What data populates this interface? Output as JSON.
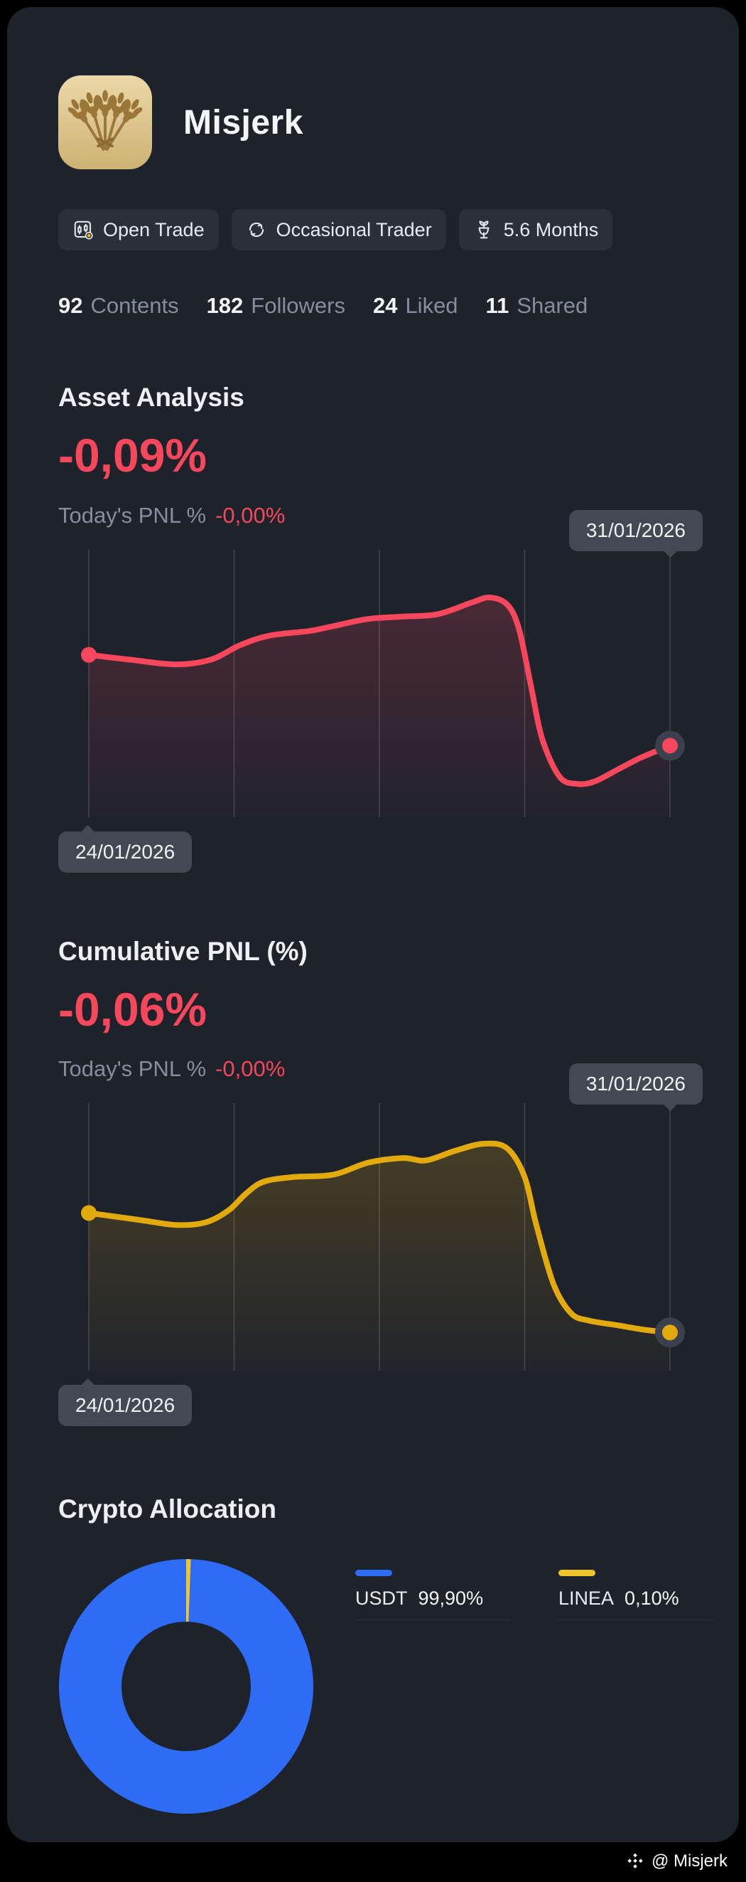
{
  "profile": {
    "name": "Misjerk",
    "avatar_icon": "wheat-sheaf",
    "badges": [
      {
        "label": "Open Trade",
        "icon": "candlestick-chart-icon"
      },
      {
        "label": "Occasional Trader",
        "icon": "trade-cycle-icon"
      },
      {
        "label": "5.6 Months",
        "icon": "seedling-cup-icon"
      }
    ],
    "stats": [
      {
        "value": "92",
        "label": "Contents"
      },
      {
        "value": "182",
        "label": "Followers"
      },
      {
        "value": "24",
        "label": "Liked"
      },
      {
        "value": "11",
        "label": "Shared"
      }
    ]
  },
  "sections": {
    "asset": {
      "title": "Asset Analysis",
      "main_value": "-0,09%",
      "today_label": "Today's PNL %",
      "today_value": "-0,00%",
      "start_date": "24/01/2026",
      "end_date": "31/01/2026"
    },
    "pnl": {
      "title": "Cumulative PNL (%)",
      "main_value": "-0,06%",
      "today_label": "Today's PNL %",
      "today_value": "-0,00%",
      "start_date": "24/01/2026",
      "end_date": "31/01/2026"
    },
    "allocation": {
      "title": "Crypto Allocation",
      "legend": [
        {
          "name": "USDT",
          "value": "99,90%",
          "color": "#2e6cf6"
        },
        {
          "name": "LINEA",
          "value": "0,10%",
          "color": "#f0c52c"
        }
      ]
    }
  },
  "footer": {
    "handle": "@ Misjerk"
  },
  "colors": {
    "negative": "#f6475d",
    "asset_line": "#f6475d",
    "pnl_line": "#e3aa0d",
    "card_bg": "#1e222b",
    "pill_bg": "#424854"
  },
  "chart_data": [
    {
      "type": "line",
      "title": "Asset Analysis PNL % (24/01/2026 - 31/01/2026)",
      "x_start": "24/01/2026",
      "x_end": "31/01/2026",
      "final_value": "-0,09%",
      "today_value": "-0,00%",
      "color": "#f6475d",
      "points": [
        [
          0.0,
          0.62
        ],
        [
          0.07,
          0.6
        ],
        [
          0.15,
          0.58
        ],
        [
          0.21,
          0.6
        ],
        [
          0.26,
          0.66
        ],
        [
          0.31,
          0.7
        ],
        [
          0.38,
          0.72
        ],
        [
          0.42,
          0.74
        ],
        [
          0.48,
          0.77
        ],
        [
          0.54,
          0.78
        ],
        [
          0.6,
          0.79
        ],
        [
          0.66,
          0.84
        ],
        [
          0.69,
          0.86
        ],
        [
          0.72,
          0.83
        ],
        [
          0.74,
          0.73
        ],
        [
          0.76,
          0.5
        ],
        [
          0.78,
          0.27
        ],
        [
          0.81,
          0.11
        ],
        [
          0.84,
          0.08
        ],
        [
          0.87,
          0.09
        ],
        [
          0.91,
          0.14
        ],
        [
          0.95,
          0.19
        ],
        [
          1.0,
          0.24
        ]
      ]
    },
    {
      "type": "line",
      "title": "Cumulative PNL % (24/01/2026 - 31/01/2026)",
      "x_start": "24/01/2026",
      "x_end": "31/01/2026",
      "final_value": "-0,06%",
      "today_value": "-0,00%",
      "color": "#e3aa0d",
      "points": [
        [
          0.0,
          0.6
        ],
        [
          0.09,
          0.57
        ],
        [
          0.15,
          0.55
        ],
        [
          0.2,
          0.56
        ],
        [
          0.24,
          0.61
        ],
        [
          0.27,
          0.68
        ],
        [
          0.3,
          0.73
        ],
        [
          0.35,
          0.75
        ],
        [
          0.42,
          0.76
        ],
        [
          0.48,
          0.81
        ],
        [
          0.54,
          0.83
        ],
        [
          0.58,
          0.82
        ],
        [
          0.63,
          0.86
        ],
        [
          0.68,
          0.89
        ],
        [
          0.72,
          0.87
        ],
        [
          0.75,
          0.75
        ],
        [
          0.77,
          0.55
        ],
        [
          0.8,
          0.3
        ],
        [
          0.83,
          0.18
        ],
        [
          0.86,
          0.15
        ],
        [
          0.91,
          0.13
        ],
        [
          0.96,
          0.11
        ],
        [
          1.0,
          0.1
        ]
      ]
    },
    {
      "type": "pie",
      "title": "Crypto Allocation",
      "slices": [
        {
          "label": "USDT",
          "value": 99.9,
          "color": "#2e6cf6"
        },
        {
          "label": "LINEA",
          "value": 0.1,
          "color": "#f0c52c"
        }
      ]
    }
  ]
}
